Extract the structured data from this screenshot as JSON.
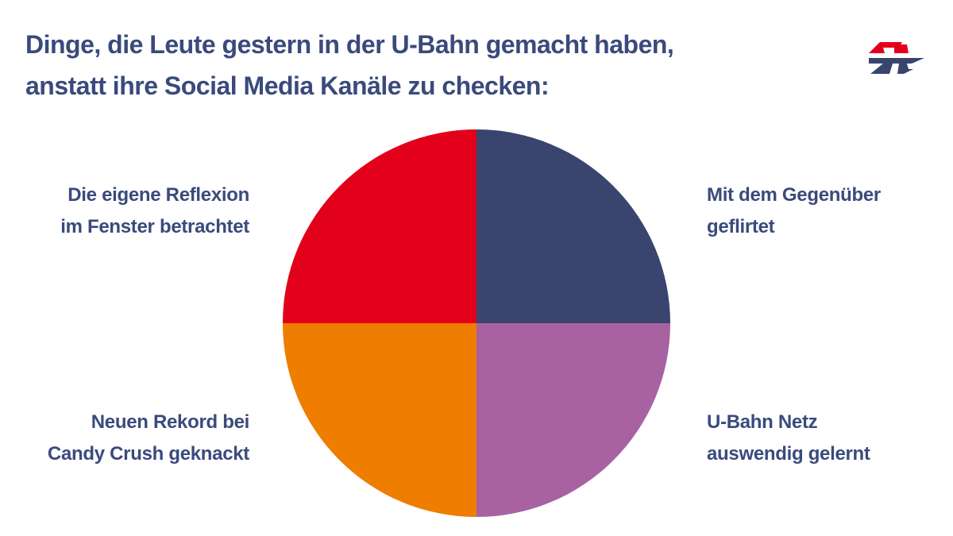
{
  "title": {
    "line1": "Dinge, die Leute gestern in der U-Bahn gemacht haben,",
    "line2": "anstatt ihre Social Media Kanäle zu checken:"
  },
  "colors": {
    "title": "#3a4a7c",
    "navy": "#39456f",
    "red": "#e2001a",
    "orange": "#ee7d00",
    "purple": "#a862a2"
  },
  "logo": {
    "icon": "metro-logo-icon"
  },
  "chart_data": {
    "type": "pie",
    "title": "Dinge, die Leute gestern in der U-Bahn gemacht haben, anstatt ihre Social Media Kanäle zu checken:",
    "slices": [
      {
        "label_lines": [
          "Mit dem Gegenüber",
          "geflirtet"
        ],
        "value": 25,
        "color": "#39456f"
      },
      {
        "label_lines": [
          "U-Bahn Netz",
          "auswendig gelernt"
        ],
        "value": 25,
        "color": "#a862a2"
      },
      {
        "label_lines": [
          "Neuen Rekord bei",
          "Candy Crush geknackt"
        ],
        "value": 25,
        "color": "#ee7d00"
      },
      {
        "label_lines": [
          "Die eigene Reflexion",
          "im Fenster betrachtet"
        ],
        "value": 25,
        "color": "#e2001a"
      }
    ],
    "legend": "labels-beside-slices"
  }
}
